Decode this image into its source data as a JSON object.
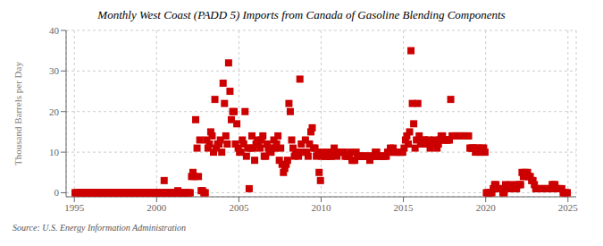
{
  "chart_data": {
    "type": "scatter",
    "title": "Monthly West Coast (PADD 5) Imports from Canada of Gasoline Blending Components",
    "ylabel": "Thousand Barrels per Day",
    "source": "Source: U.S. Energy Information Administration",
    "color": "#cc0000",
    "marker": "square",
    "grid": true,
    "xlim": [
      1994.5,
      2025.5
    ],
    "ylim": [
      -1,
      40
    ],
    "xticks": [
      1995,
      2000,
      2005,
      2010,
      2015,
      2020,
      2025
    ],
    "yticks": [
      0,
      10,
      20,
      30,
      40
    ],
    "x": [
      1995.0417,
      1995.125,
      1995.2083,
      1995.2917,
      1995.375,
      1995.4583,
      1995.5417,
      1995.625,
      1995.7083,
      1995.7917,
      1995.875,
      1995.9583,
      1996.0417,
      1996.125,
      1996.2083,
      1996.2917,
      1996.375,
      1996.4583,
      1996.5417,
      1996.625,
      1996.7083,
      1996.7917,
      1996.875,
      1996.9583,
      1997.0417,
      1997.125,
      1997.2083,
      1997.2917,
      1997.375,
      1997.4583,
      1997.5417,
      1997.625,
      1997.7083,
      1997.7917,
      1997.875,
      1997.9583,
      1998.0417,
      1998.125,
      1998.2083,
      1998.2917,
      1998.375,
      1998.4583,
      1998.5417,
      1998.625,
      1998.7083,
      1998.7917,
      1998.875,
      1998.9583,
      1999.0417,
      1999.125,
      1999.2083,
      1999.2917,
      1999.375,
      1999.4583,
      1999.5417,
      1999.625,
      1999.7083,
      1999.7917,
      1999.875,
      1999.9583,
      2000.0417,
      2000.125,
      2000.2083,
      2000.2917,
      2000.375,
      2000.4583,
      2000.5417,
      2000.625,
      2000.7083,
      2000.7917,
      2000.875,
      2000.9583,
      2001.0417,
      2001.125,
      2001.2083,
      2001.2917,
      2001.375,
      2001.4583,
      2001.5417,
      2001.625,
      2001.7083,
      2001.7917,
      2001.875,
      2001.9583,
      2002.0417,
      2002.125,
      2002.2083,
      2002.2917,
      2002.375,
      2002.4583,
      2002.5417,
      2002.625,
      2002.7083,
      2002.7917,
      2002.875,
      2002.9583,
      2003.0417,
      2003.125,
      2003.2083,
      2003.2917,
      2003.375,
      2003.4583,
      2003.5417,
      2003.625,
      2003.7083,
      2003.7917,
      2003.875,
      2003.9583,
      2004.0417,
      2004.125,
      2004.2083,
      2004.2917,
      2004.375,
      2004.4583,
      2004.5417,
      2004.625,
      2004.7083,
      2004.7917,
      2004.875,
      2004.9583,
      2005.0417,
      2005.125,
      2005.2083,
      2005.2917,
      2005.375,
      2005.4583,
      2005.5417,
      2005.625,
      2005.7083,
      2005.7917,
      2005.875,
      2005.9583,
      2006.0417,
      2006.125,
      2006.2083,
      2006.2917,
      2006.375,
      2006.4583,
      2006.5417,
      2006.625,
      2006.7083,
      2006.7917,
      2006.875,
      2006.9583,
      2007.0417,
      2007.125,
      2007.2083,
      2007.2917,
      2007.375,
      2007.4583,
      2007.5417,
      2007.625,
      2007.7083,
      2007.7917,
      2007.875,
      2007.9583,
      2008.0417,
      2008.125,
      2008.2083,
      2008.2917,
      2008.375,
      2008.4583,
      2008.5417,
      2008.625,
      2008.7083,
      2008.7917,
      2008.875,
      2008.9583,
      2009.0417,
      2009.125,
      2009.2083,
      2009.2917,
      2009.375,
      2009.4583,
      2009.5417,
      2009.625,
      2009.7083,
      2009.7917,
      2009.875,
      2009.9583,
      2010.0417,
      2010.125,
      2010.2083,
      2010.2917,
      2010.375,
      2010.4583,
      2010.5417,
      2010.625,
      2010.7083,
      2010.7917,
      2010.875,
      2010.9583,
      2011.0417,
      2011.125,
      2011.2083,
      2011.2917,
      2011.375,
      2011.4583,
      2011.5417,
      2011.625,
      2011.7083,
      2011.7917,
      2011.875,
      2011.9583,
      2012.0417,
      2012.125,
      2012.2083,
      2012.2917,
      2012.375,
      2012.4583,
      2012.5417,
      2012.625,
      2012.7083,
      2012.7917,
      2012.875,
      2012.9583,
      2013.0417,
      2013.125,
      2013.2083,
      2013.2917,
      2013.375,
      2013.4583,
      2013.5417,
      2013.625,
      2013.7083,
      2013.7917,
      2013.875,
      2013.9583,
      2014.0417,
      2014.125,
      2014.2083,
      2014.2917,
      2014.375,
      2014.4583,
      2014.5417,
      2014.625,
      2014.7083,
      2014.7917,
      2014.875,
      2014.9583,
      2015.0417,
      2015.125,
      2015.2083,
      2015.2917,
      2015.375,
      2015.4583,
      2015.5417,
      2015.625,
      2015.7083,
      2015.7917,
      2015.875,
      2015.9583,
      2016.0417,
      2016.125,
      2016.2083,
      2016.2917,
      2016.375,
      2016.4583,
      2016.5417,
      2016.625,
      2016.7083,
      2016.7917,
      2016.875,
      2016.9583,
      2017.0417,
      2017.125,
      2017.2083,
      2017.2917,
      2017.375,
      2017.4583,
      2017.5417,
      2017.625,
      2017.7083,
      2017.7917,
      2017.875,
      2017.9583,
      2018.0417,
      2018.125,
      2018.2083,
      2018.2917,
      2018.375,
      2018.4583,
      2018.5417,
      2018.625,
      2018.7083,
      2018.7917,
      2018.875,
      2018.9583,
      2019.0417,
      2019.125,
      2019.2083,
      2019.2917,
      2019.375,
      2019.4583,
      2019.5417,
      2019.625,
      2019.7083,
      2019.7917,
      2019.875,
      2019.9583,
      2020.0417,
      2020.125,
      2020.2083,
      2020.2917,
      2020.375,
      2020.4583,
      2020.5417,
      2020.625,
      2020.7083,
      2020.7917,
      2020.875,
      2020.9583,
      2021.0417,
      2021.125,
      2021.2083,
      2021.2917,
      2021.375,
      2021.4583,
      2021.5417,
      2021.625,
      2021.7083,
      2021.7917,
      2021.875,
      2021.9583,
      2022.0417,
      2022.125,
      2022.2083,
      2022.2917,
      2022.375,
      2022.4583,
      2022.5417,
      2022.625,
      2022.7083,
      2022.7917,
      2022.875,
      2022.9583,
      2023.0417,
      2023.125,
      2023.2083,
      2023.2917,
      2023.375,
      2023.4583,
      2023.5417,
      2023.625,
      2023.7083,
      2023.7917,
      2023.875,
      2023.9583,
      2024.0417,
      2024.125,
      2024.2083,
      2024.2917,
      2024.375,
      2024.4583,
      2024.5417,
      2024.625,
      2024.7083,
      2024.7917,
      2024.875,
      2024.9583
    ],
    "values": [
      0,
      0,
      0,
      0,
      0,
      0,
      0,
      0,
      0,
      0,
      0,
      0,
      0,
      0,
      0,
      0,
      0,
      0,
      0,
      0,
      0,
      0,
      0,
      0,
      0,
      0,
      0,
      0,
      0,
      0,
      0,
      0,
      0,
      0,
      0,
      0,
      0,
      0,
      0,
      0,
      0,
      0,
      0,
      0,
      0,
      0,
      0,
      0,
      0,
      0,
      0,
      0,
      0,
      0,
      0,
      0,
      0,
      0,
      0,
      0,
      0,
      0,
      0,
      0,
      0,
      3,
      0,
      0,
      0,
      0,
      0,
      0,
      0,
      0,
      0,
      0.5,
      0,
      0,
      0,
      0,
      0,
      0,
      0,
      0,
      0,
      4,
      5,
      4,
      18,
      11,
      4,
      13,
      0.5,
      0.5,
      0,
      0,
      13,
      11,
      12,
      15,
      14,
      10,
      23,
      11,
      12,
      12,
      13,
      10,
      27,
      22,
      14,
      12,
      32,
      25,
      18,
      20,
      20,
      12,
      17,
      11,
      10,
      10,
      13,
      12,
      20,
      9,
      11,
      1,
      11,
      14,
      11,
      8,
      12,
      13,
      12,
      11,
      13,
      14,
      9,
      9,
      12,
      11,
      10,
      10,
      11,
      13,
      11,
      12,
      14,
      8,
      11,
      7,
      5,
      6,
      7,
      8,
      22,
      20,
      13,
      11,
      9,
      10,
      10,
      9,
      28,
      12,
      10,
      10,
      13,
      10,
      9,
      12,
      15,
      16,
      11,
      11,
      9,
      10,
      5,
      3,
      9,
      10,
      9,
      9,
      10,
      9,
      9,
      9,
      10,
      11,
      10,
      9,
      10,
      10,
      10,
      10,
      10,
      9,
      9,
      9,
      9,
      10,
      8,
      8,
      8,
      10,
      9,
      9,
      9,
      9,
      9,
      9,
      9,
      9,
      9,
      8,
      9,
      9,
      9,
      10,
      10,
      9,
      9,
      9,
      9,
      9,
      9,
      9,
      10,
      10,
      11,
      10,
      11,
      10,
      10,
      10,
      10,
      10,
      10,
      10,
      11,
      13,
      14,
      12,
      15,
      35,
      22,
      17,
      11,
      13,
      22,
      14,
      12,
      12,
      13,
      13,
      12,
      12,
      13,
      11,
      12,
      12,
      13,
      12,
      11,
      12,
      13,
      14,
      14,
      13,
      13,
      13,
      13,
      13,
      23,
      14,
      14,
      14,
      14,
      14,
      14,
      14,
      14,
      14,
      14,
      14,
      14,
      14,
      11,
      11,
      11,
      11,
      10,
      11,
      11,
      10,
      10,
      11,
      11,
      10,
      0,
      0,
      0,
      0,
      0,
      1,
      2,
      2,
      1,
      1,
      1,
      1,
      0,
      0,
      2,
      1,
      1,
      1,
      2,
      1,
      1,
      1,
      1,
      2,
      2,
      2,
      5,
      4,
      5,
      4,
      5,
      4,
      4,
      3,
      3,
      2,
      1,
      1,
      1,
      1,
      1,
      1,
      1,
      1,
      1,
      1,
      1,
      1,
      2,
      2,
      2,
      1,
      1,
      1,
      1,
      1,
      0,
      0,
      0,
      0
    ]
  }
}
